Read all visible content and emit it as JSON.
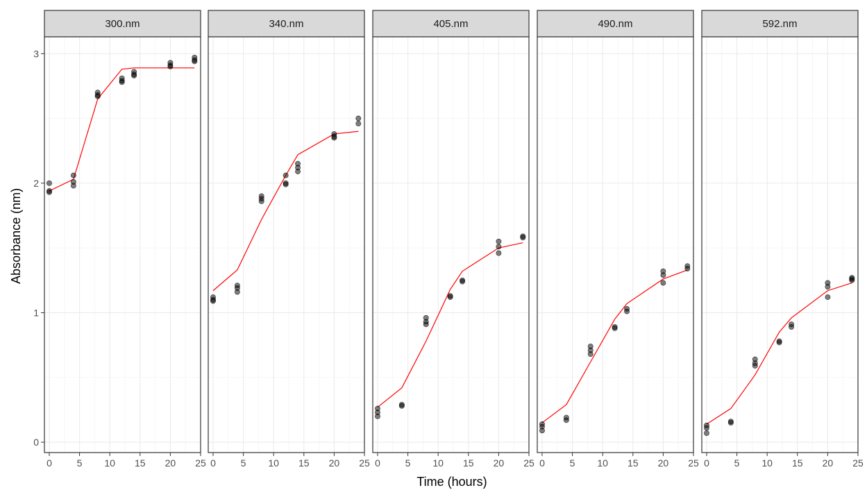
{
  "chart_data": {
    "type": "scatter",
    "layout": "faceted",
    "xlabel": "Time (hours)",
    "ylabel": "Absorbance (nm)",
    "xlim": [
      -0.8,
      25
    ],
    "ylim": [
      -0.08,
      3.13
    ],
    "x_ticks": [
      0,
      5,
      10,
      15,
      20,
      25
    ],
    "y_ticks": [
      0,
      1,
      2,
      3
    ],
    "grid": true,
    "theme": "bw",
    "colors": {
      "points": "#000000",
      "fit_line": "#ff0000",
      "strip_fill": "#d9d9d9",
      "grid": "#ebebeb",
      "border": "#333333"
    },
    "facets": [
      {
        "label": "300.nm",
        "points": [
          [
            0,
            2.0
          ],
          [
            0,
            1.94
          ],
          [
            0,
            1.93
          ],
          [
            4,
            2.06
          ],
          [
            4,
            2.01
          ],
          [
            4,
            1.98
          ],
          [
            8,
            2.7
          ],
          [
            8,
            2.68
          ],
          [
            8,
            2.67
          ],
          [
            12,
            2.81
          ],
          [
            12,
            2.79
          ],
          [
            12,
            2.78
          ],
          [
            14,
            2.86
          ],
          [
            14,
            2.84
          ],
          [
            14,
            2.83
          ],
          [
            20,
            2.93
          ],
          [
            20,
            2.91
          ],
          [
            20,
            2.9
          ],
          [
            24,
            2.97
          ],
          [
            24,
            2.95
          ],
          [
            24,
            2.94
          ]
        ],
        "fit": [
          [
            0,
            1.94
          ],
          [
            4,
            2.03
          ],
          [
            8,
            2.65
          ],
          [
            12,
            2.88
          ],
          [
            14,
            2.89
          ],
          [
            20,
            2.89
          ],
          [
            24,
            2.89
          ]
        ]
      },
      {
        "label": "340.nm",
        "points": [
          [
            0,
            1.12
          ],
          [
            0,
            1.1
          ],
          [
            0,
            1.09
          ],
          [
            4,
            1.21
          ],
          [
            4,
            1.19
          ],
          [
            4,
            1.16
          ],
          [
            8,
            1.9
          ],
          [
            8,
            1.88
          ],
          [
            8,
            1.86
          ],
          [
            12,
            2.06
          ],
          [
            12,
            2.0
          ],
          [
            12,
            1.99
          ],
          [
            14,
            2.15
          ],
          [
            14,
            2.12
          ],
          [
            14,
            2.09
          ],
          [
            20,
            2.38
          ],
          [
            20,
            2.36
          ],
          [
            20,
            2.35
          ],
          [
            24,
            2.5
          ],
          [
            24,
            2.46
          ]
        ],
        "fit": [
          [
            0,
            1.17
          ],
          [
            4,
            1.33
          ],
          [
            8,
            1.72
          ],
          [
            12,
            2.06
          ],
          [
            14,
            2.22
          ],
          [
            20,
            2.38
          ],
          [
            24,
            2.4
          ]
        ]
      },
      {
        "label": "405.nm",
        "points": [
          [
            0,
            0.26
          ],
          [
            0,
            0.23
          ],
          [
            0,
            0.2
          ],
          [
            4,
            0.29
          ],
          [
            4,
            0.28
          ],
          [
            8,
            0.96
          ],
          [
            8,
            0.93
          ],
          [
            8,
            0.91
          ],
          [
            12,
            1.13
          ],
          [
            12,
            1.12
          ],
          [
            14,
            1.25
          ],
          [
            14,
            1.24
          ],
          [
            20,
            1.55
          ],
          [
            20,
            1.51
          ],
          [
            20,
            1.46
          ],
          [
            24,
            1.59
          ],
          [
            24,
            1.58
          ]
        ],
        "fit": [
          [
            0,
            0.27
          ],
          [
            4,
            0.42
          ],
          [
            8,
            0.78
          ],
          [
            12,
            1.18
          ],
          [
            14,
            1.32
          ],
          [
            20,
            1.5
          ],
          [
            24,
            1.54
          ]
        ]
      },
      {
        "label": "490.nm",
        "points": [
          [
            0,
            0.14
          ],
          [
            0,
            0.12
          ],
          [
            0,
            0.09
          ],
          [
            4,
            0.19
          ],
          [
            4,
            0.17
          ],
          [
            8,
            0.74
          ],
          [
            8,
            0.71
          ],
          [
            8,
            0.68
          ],
          [
            12,
            0.89
          ],
          [
            12,
            0.88
          ],
          [
            14,
            1.03
          ],
          [
            14,
            1.01
          ],
          [
            20,
            1.32
          ],
          [
            20,
            1.29
          ],
          [
            20,
            1.23
          ],
          [
            24,
            1.36
          ],
          [
            24,
            1.34
          ]
        ],
        "fit": [
          [
            0,
            0.15
          ],
          [
            4,
            0.29
          ],
          [
            8,
            0.62
          ],
          [
            12,
            0.95
          ],
          [
            14,
            1.07
          ],
          [
            20,
            1.26
          ],
          [
            24,
            1.33
          ]
        ]
      },
      {
        "label": "592.nm",
        "points": [
          [
            0,
            0.13
          ],
          [
            0,
            0.11
          ],
          [
            0,
            0.07
          ],
          [
            4,
            0.16
          ],
          [
            4,
            0.15
          ],
          [
            8,
            0.64
          ],
          [
            8,
            0.61
          ],
          [
            8,
            0.59
          ],
          [
            12,
            0.78
          ],
          [
            12,
            0.77
          ],
          [
            14,
            0.91
          ],
          [
            14,
            0.89
          ],
          [
            20,
            1.23
          ],
          [
            20,
            1.2
          ],
          [
            20,
            1.12
          ],
          [
            24,
            1.27
          ],
          [
            24,
            1.26
          ],
          [
            24,
            1.25
          ]
        ],
        "fit": [
          [
            0,
            0.14
          ],
          [
            4,
            0.26
          ],
          [
            8,
            0.52
          ],
          [
            12,
            0.85
          ],
          [
            14,
            0.96
          ],
          [
            20,
            1.17
          ],
          [
            24,
            1.23
          ]
        ]
      }
    ]
  }
}
